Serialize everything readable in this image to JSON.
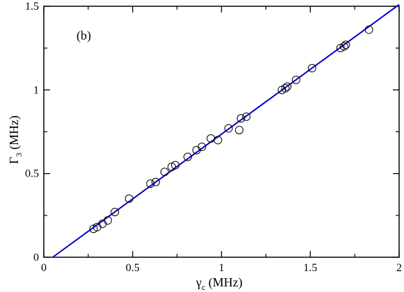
{
  "chart_data": {
    "type": "scatter",
    "annotation": "(b)",
    "xlabel": {
      "symbol": "γ",
      "subscript": "c",
      "unit": " (MHz)"
    },
    "ylabel": {
      "symbol": "Γ",
      "subscript": "3",
      "unit": " (MHz)"
    },
    "xlim": [
      0,
      2
    ],
    "ylim": [
      0,
      1.5
    ],
    "xticks": [
      {
        "value": 0,
        "label": "0"
      },
      {
        "value": 0.5,
        "label": "0.5"
      },
      {
        "value": 1,
        "label": "1"
      },
      {
        "value": 1.5,
        "label": "1.5"
      },
      {
        "value": 2,
        "label": "2"
      }
    ],
    "yticks": [
      {
        "value": 0,
        "label": "0"
      },
      {
        "value": 0.5,
        "label": "0.5"
      },
      {
        "value": 1,
        "label": "1"
      },
      {
        "value": 1.5,
        "label": "1.5"
      }
    ],
    "grid": false,
    "legend": "none",
    "fit_line": {
      "x": [
        0.05,
        2.0
      ],
      "y": [
        0.0,
        1.51
      ],
      "color": "#0000cc"
    },
    "points": {
      "marker": "open-circle",
      "color": "#000000",
      "x": [
        0.28,
        0.3,
        0.33,
        0.36,
        0.4,
        0.48,
        0.6,
        0.63,
        0.68,
        0.72,
        0.74,
        0.81,
        0.86,
        0.89,
        0.94,
        0.98,
        1.04,
        1.1,
        1.11,
        1.14,
        1.34,
        1.36,
        1.37,
        1.42,
        1.51,
        1.67,
        1.69,
        1.7,
        1.83
      ],
      "y": [
        0.17,
        0.18,
        0.2,
        0.22,
        0.27,
        0.35,
        0.44,
        0.45,
        0.51,
        0.54,
        0.55,
        0.6,
        0.64,
        0.66,
        0.71,
        0.7,
        0.77,
        0.76,
        0.83,
        0.84,
        1.0,
        1.01,
        1.02,
        1.06,
        1.13,
        1.25,
        1.26,
        1.27,
        1.36
      ]
    }
  }
}
